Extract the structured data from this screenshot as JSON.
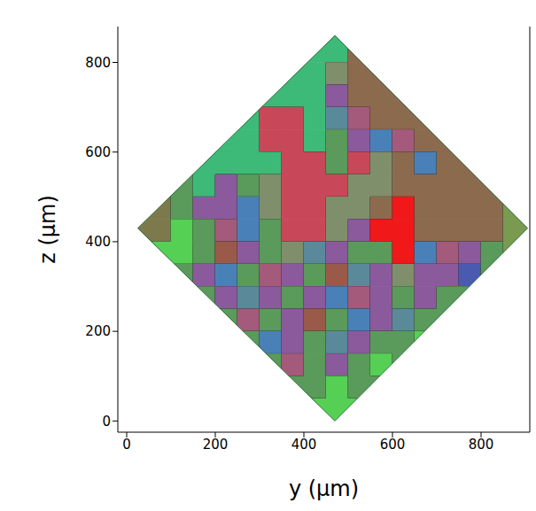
{
  "chart_data": {
    "type": "heatmap",
    "x_label": "y (µm)",
    "y_label": "z (µm)",
    "xlim": [
      -20,
      910
    ],
    "ylim": [
      -25,
      880
    ],
    "xticks": [
      0,
      200,
      400,
      600,
      800
    ],
    "yticks": [
      0,
      200,
      400,
      600,
      800
    ],
    "x": [
      25,
      75,
      125,
      175,
      225,
      275,
      325,
      375,
      425,
      475,
      525,
      575,
      625,
      675,
      725,
      775,
      825,
      875,
      925
    ],
    "y": [
      875,
      825,
      775,
      725,
      675,
      625,
      575,
      525,
      475,
      425,
      375,
      325,
      275,
      225,
      175,
      125,
      75,
      25
    ],
    "cells": [
      [
        null,
        null,
        null,
        null,
        null,
        null,
        null,
        null,
        "#3dba78",
        "#3dba78",
        "#8c6a4e",
        null,
        null,
        null,
        null,
        null,
        null,
        null,
        null
      ],
      [
        null,
        null,
        null,
        null,
        null,
        null,
        null,
        "#3dba78",
        "#3dba78",
        "#3dba78",
        "#8c6a4e",
        "#8c6a4e",
        null,
        null,
        null,
        null,
        null,
        null,
        null
      ],
      [
        null,
        null,
        null,
        null,
        null,
        null,
        "#3dba78",
        "#3dba78",
        "#3dba78",
        "#7f8f6c",
        "#8c6a4e",
        "#8c6a4e",
        "#8c6a4e",
        null,
        null,
        null,
        null,
        null,
        null
      ],
      [
        null,
        null,
        null,
        null,
        null,
        "#3dba78",
        "#3dba78",
        "#3dba78",
        "#3dba78",
        "#8a5a9c",
        "#8c6a4e",
        "#8c6a4e",
        "#8c6a4e",
        "#8c6a4e",
        null,
        null,
        null,
        null,
        null
      ],
      [
        null,
        null,
        null,
        null,
        "#3dba78",
        "#3dba78",
        "#c8485a",
        "#c8485a",
        "#3dba78",
        "#5a8a9a",
        "#a45a7a",
        "#8c6a4e",
        "#8c6a4e",
        "#8c6a4e",
        "#8c6a4e",
        null,
        null,
        null,
        null
      ],
      [
        null,
        null,
        null,
        "#3dba78",
        "#3dba78",
        "#3dba78",
        "#c8485a",
        "#c8485a",
        "#3dba78",
        "#5a9a5a",
        "#8a5a9c",
        "#4a80b8",
        "#a45a7a",
        "#8c6a4e",
        "#8c6a4e",
        "#8c6a4e",
        null,
        null,
        null
      ],
      [
        null,
        null,
        "#3dba78",
        "#3dba78",
        "#3dba78",
        "#3dba78",
        "#3dba78",
        "#c8485a",
        "#c8485a",
        "#5a9a5a",
        "#c8485a",
        "#7f8f6c",
        "#8c6a4e",
        "#4a80b8",
        "#8c6a4e",
        "#8c6a4e",
        "#8c6a4e",
        null,
        null
      ],
      [
        null,
        "#3dba78",
        "#5a9a5a",
        "#3dba78",
        "#8a5a9c",
        "#5a9a5a",
        "#7f8f6c",
        "#c8485a",
        "#c8485a",
        "#c8485a",
        "#7f8f6c",
        "#7f8f6c",
        "#8c6a4e",
        "#8c6a4e",
        "#8c6a4e",
        "#8c6a4e",
        "#8c6a4e",
        "#8c6a4e",
        null
      ],
      [
        "#7c7a4c",
        "#7c7a4c",
        "#5a9a5a",
        "#8a5a9c",
        "#8a5a9c",
        "#4a80b8",
        "#7f8f6c",
        "#c8485a",
        "#c8485a",
        "#7f8f6c",
        "#7f8f6c",
        "#8c6a4e",
        "#f01818",
        "#8c6a4e",
        "#8c6a4e",
        "#8c6a4e",
        "#8c6a4e",
        "#7a9a50",
        "#7a9a50"
      ],
      [
        "#7c7a4c",
        "#7c7a4c",
        "#55d055",
        "#5a9a5a",
        "#a45a7a",
        "#4a80b8",
        "#5a9a5a",
        "#c8485a",
        "#c8485a",
        "#7f8f6c",
        "#8a5a9c",
        "#f01818",
        "#f01818",
        "#8c6a4e",
        "#8c6a4e",
        "#8c6a4e",
        "#8c6a4e",
        "#7a9a50",
        "#7a9a50"
      ],
      [
        null,
        "#55d055",
        "#55d055",
        "#5a9a5a",
        "#9a5a4a",
        "#8a5a9c",
        "#5a9a5a",
        "#7f8f6c",
        "#5a8a9a",
        "#8a5a9c",
        "#5a9a5a",
        "#5a9a5a",
        "#f01818",
        "#4a80b8",
        "#a45a7a",
        "#8a5a9c",
        "#5a9a5a",
        "#7a9a50",
        null
      ],
      [
        null,
        null,
        "#5a9a5a",
        "#8a5a9c",
        "#4a80b8",
        "#5a9a5a",
        "#a45a7a",
        "#8a5a9c",
        "#5a9a5a",
        "#9a5a4a",
        "#5a8a9a",
        "#8a5a9c",
        "#7f8f6c",
        "#8a5a9c",
        "#8a5a9c",
        "#4a5ab0",
        "#5a9a5a",
        null,
        null
      ],
      [
        null,
        null,
        null,
        "#5a9a5a",
        "#8a5a9c",
        "#5a8a9a",
        "#8a5a9c",
        "#5a9a5a",
        "#8a5a9c",
        "#4a80b8",
        "#a45a7a",
        "#8a5a9c",
        "#5a9a5a",
        "#8a5a9c",
        "#5a9a5a",
        "#5a9a5a",
        null,
        null,
        null
      ],
      [
        null,
        null,
        null,
        null,
        "#5a9a5a",
        "#a45a7a",
        "#5a9a5a",
        "#8a5a9c",
        "#9a5a4a",
        "#5a9a5a",
        "#4a80b8",
        "#8a5a9c",
        "#5a8a9a",
        "#5a9a5a",
        "#5a9a5a",
        null,
        null,
        null,
        null
      ],
      [
        null,
        null,
        null,
        null,
        null,
        "#5a9a5a",
        "#4a80b8",
        "#8a5a9c",
        "#5a9a5a",
        "#5a8a9a",
        "#8a5a9c",
        "#5a9a5a",
        "#5a9a5a",
        "#55d055",
        null,
        null,
        null,
        null,
        null
      ],
      [
        null,
        null,
        null,
        null,
        null,
        null,
        "#5a9a5a",
        "#a45a7a",
        "#5a9a5a",
        "#8a5a9c",
        "#5a9a5a",
        "#55d055",
        "#5a9a5a",
        null,
        null,
        null,
        null,
        null,
        null
      ],
      [
        null,
        null,
        null,
        null,
        null,
        null,
        null,
        "#5a9a5a",
        "#5a9a5a",
        "#55d055",
        "#5a9a5a",
        "#5a9a5a",
        null,
        null,
        null,
        null,
        null,
        null,
        null
      ],
      [
        null,
        null,
        null,
        null,
        null,
        null,
        null,
        null,
        "#55d055",
        "#55d055",
        "#55d055",
        null,
        null,
        null,
        null,
        null,
        null,
        null,
        null
      ]
    ],
    "outline": [
      [
        470,
        860
      ],
      [
        905,
        430
      ],
      [
        470,
        0
      ],
      [
        25,
        430
      ]
    ]
  }
}
